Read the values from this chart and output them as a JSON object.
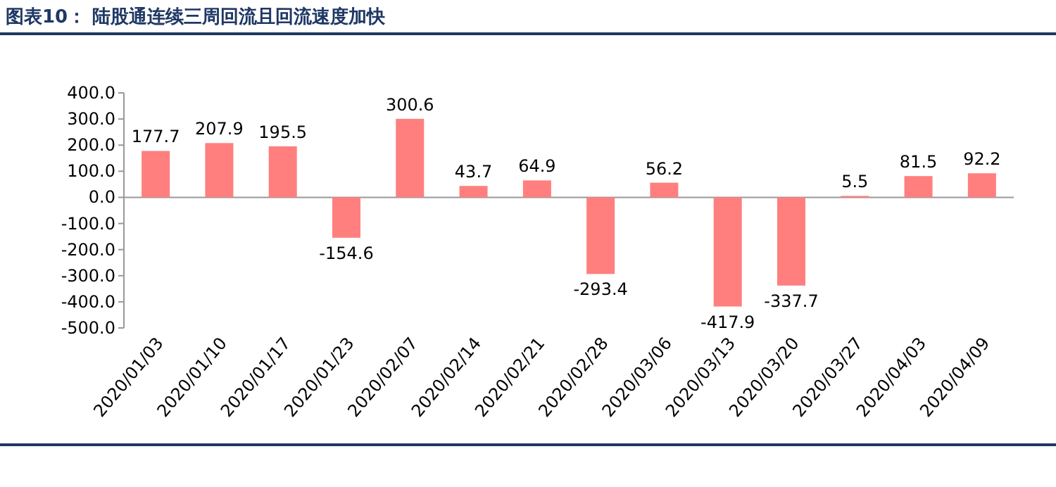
{
  "chart_data": {
    "type": "bar",
    "title": "图表10： 陆股通连续三周回流且回流速度加快",
    "categories": [
      "2020/01/03",
      "2020/01/10",
      "2020/01/17",
      "2020/01/23",
      "2020/02/07",
      "2020/02/14",
      "2020/02/21",
      "2020/02/28",
      "2020/03/06",
      "2020/03/13",
      "2020/03/20",
      "2020/03/27",
      "2020/04/03",
      "2020/04/09"
    ],
    "values": [
      177.7,
      207.9,
      195.5,
      -154.6,
      300.6,
      43.7,
      64.9,
      -293.4,
      56.2,
      -417.9,
      -337.7,
      5.5,
      81.5,
      92.2
    ],
    "color": "#ff7f7f",
    "ylim": [
      -500,
      400
    ],
    "yticks": [
      {
        "value": -500,
        "label": "-500.0"
      },
      {
        "value": -400,
        "label": "-400.0"
      },
      {
        "value": -300,
        "label": "-300.0"
      },
      {
        "value": -200,
        "label": "-200.0"
      },
      {
        "value": -100,
        "label": "-100.0"
      },
      {
        "value": 0,
        "label": "0.0"
      },
      {
        "value": 100,
        "label": "100.0"
      },
      {
        "value": 200,
        "label": "200.0"
      },
      {
        "value": 300,
        "label": "300.0"
      },
      {
        "value": 400,
        "label": "400.0"
      }
    ],
    "data_labels": true
  }
}
